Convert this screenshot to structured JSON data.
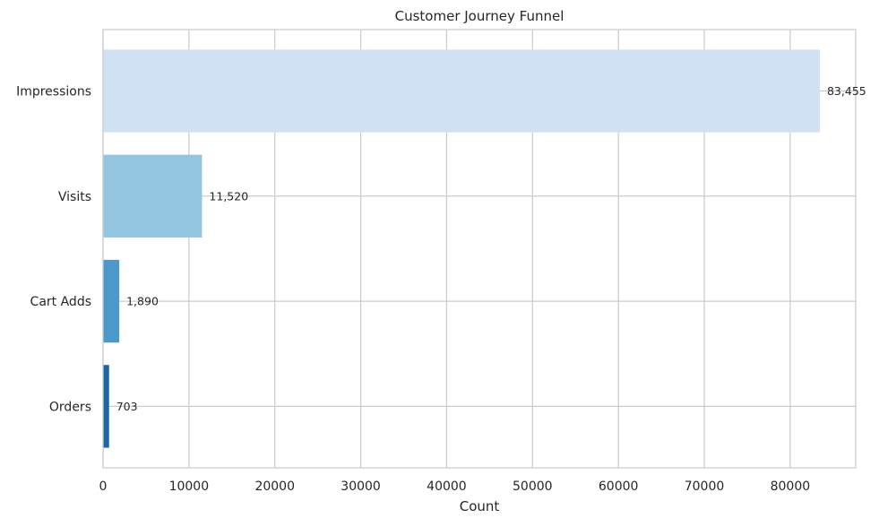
{
  "chart_data": {
    "type": "bar",
    "orientation": "horizontal",
    "title": "Customer Journey Funnel",
    "xlabel": "Count",
    "ylabel": "",
    "categories": [
      "Impressions",
      "Visits",
      "Cart Adds",
      "Orders"
    ],
    "values": [
      83455,
      11520,
      1890,
      703
    ],
    "value_labels": [
      "83,455",
      "11,520",
      "1,890",
      "703"
    ],
    "colors": [
      "#cfe1f2",
      "#93c4e0",
      "#4b98cb",
      "#1c64ab"
    ],
    "xlim": [
      0,
      87628
    ],
    "xticks": [
      0,
      10000,
      20000,
      30000,
      40000,
      50000,
      60000,
      70000,
      80000
    ],
    "xtick_labels": [
      "0",
      "10000",
      "20000",
      "30000",
      "40000",
      "50000",
      "60000",
      "70000",
      "80000"
    ],
    "grid": true,
    "legend": "none"
  }
}
